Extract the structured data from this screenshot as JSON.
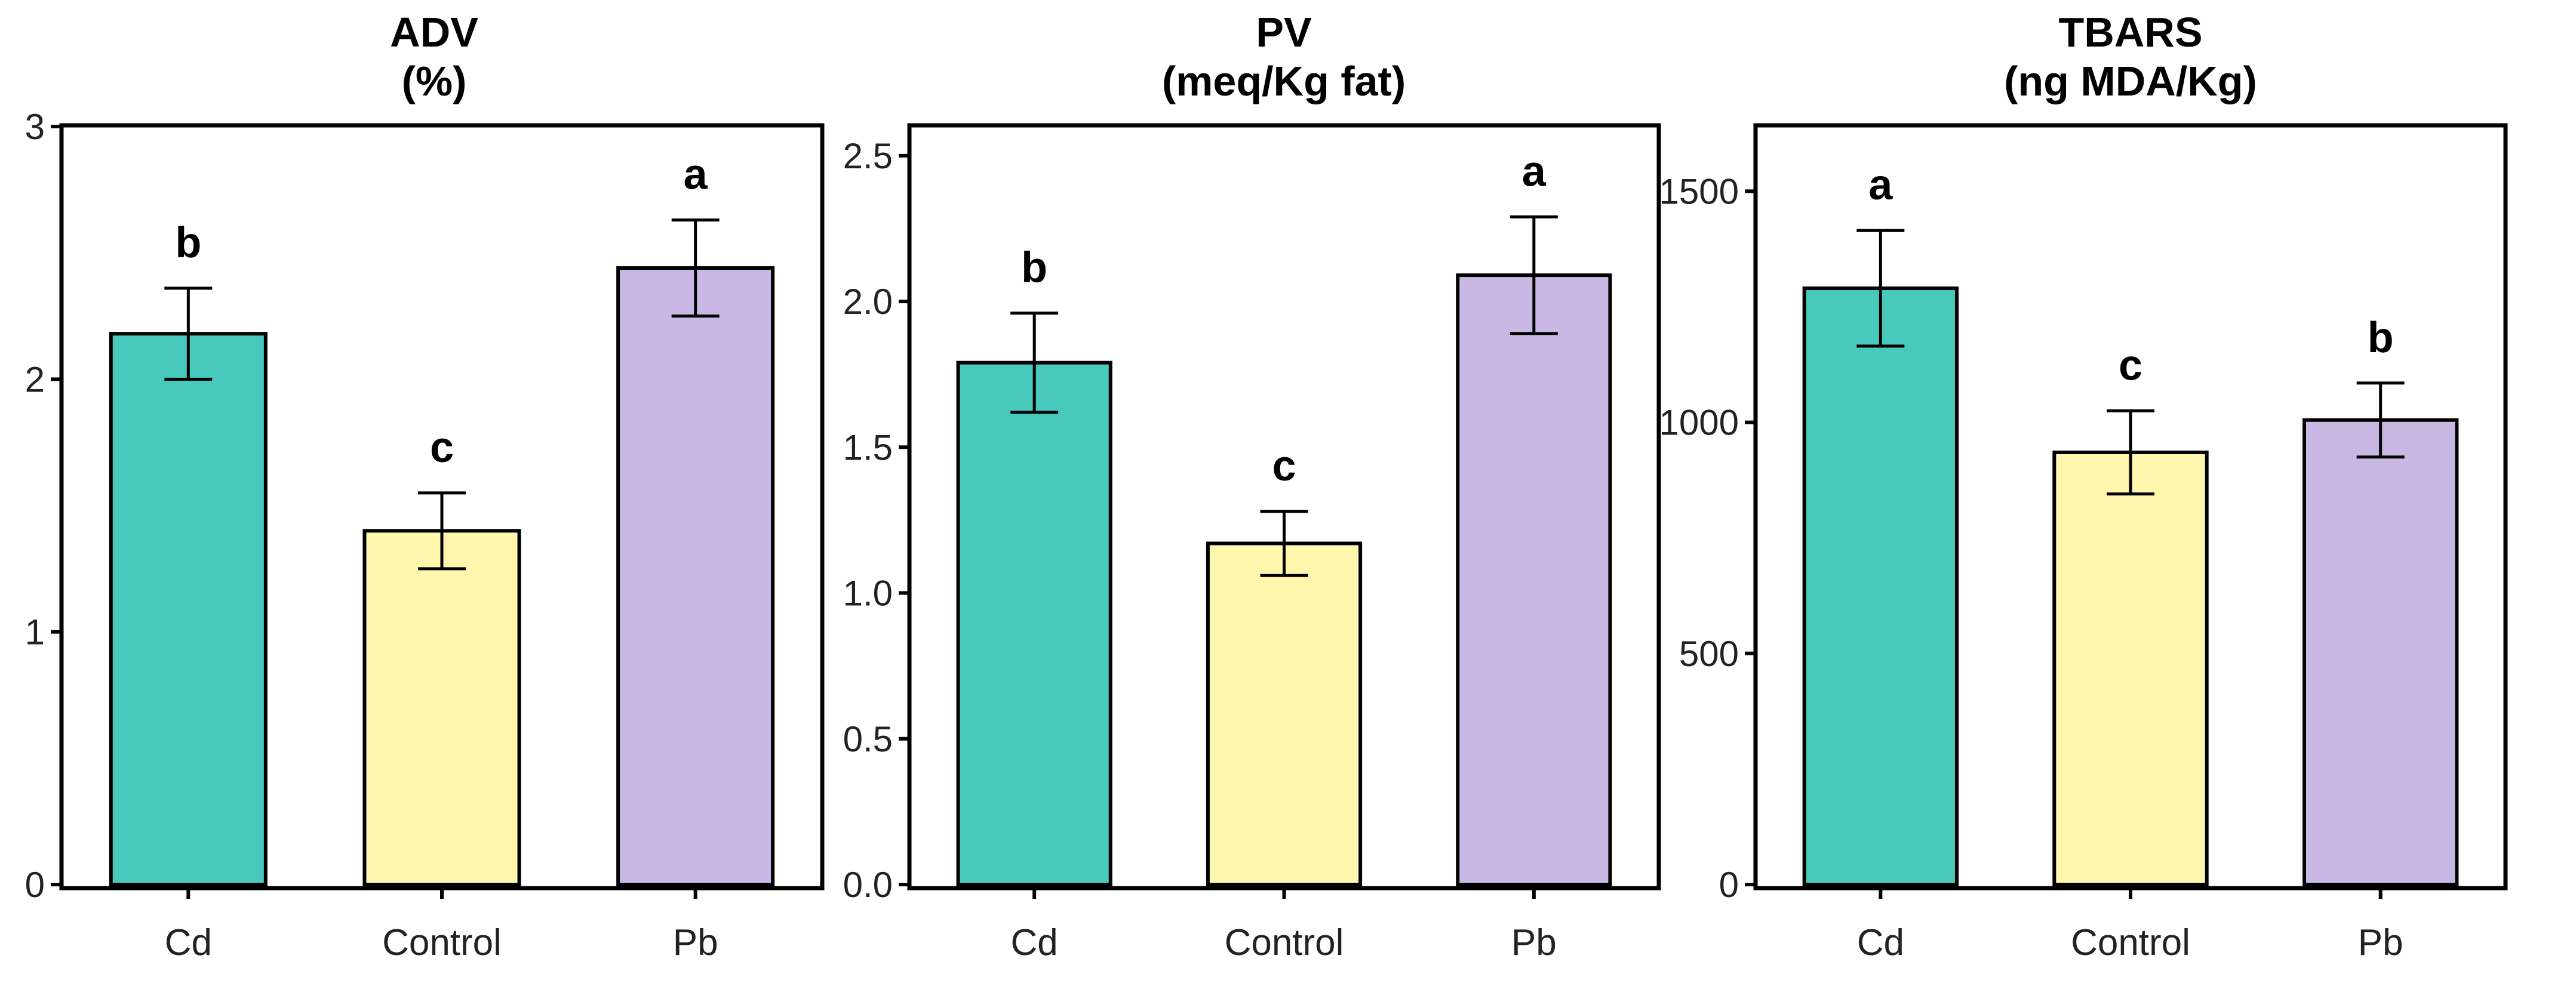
{
  "chart_data": [
    {
      "type": "bar",
      "title_line1": "ADV",
      "title_line2": "(%)",
      "categories": [
        "Cd",
        "Control",
        "Pb"
      ],
      "values": [
        2.18,
        1.4,
        2.44
      ],
      "errors": [
        0.18,
        0.15,
        0.19
      ],
      "significance": [
        "b",
        "c",
        "a"
      ],
      "ylim": [
        0,
        3
      ],
      "yticks": [
        0,
        1,
        2,
        3
      ],
      "ytick_labels": [
        "0",
        "1",
        "2",
        "3"
      ],
      "colors": [
        "#48C9BC",
        "#FFF7AE",
        "#C8B8E3"
      ]
    },
    {
      "type": "bar",
      "title_line1": "PV",
      "title_line2": "(meq/Kg fat)",
      "categories": [
        "Cd",
        "Control",
        "Pb"
      ],
      "values": [
        1.79,
        1.17,
        2.09
      ],
      "errors": [
        0.17,
        0.11,
        0.2
      ],
      "significance": [
        "b",
        "c",
        "a"
      ],
      "ylim": [
        0,
        2.6
      ],
      "yticks": [
        0,
        0.5,
        1.0,
        1.5,
        2.0,
        2.5
      ],
      "ytick_labels": [
        "0.0",
        "0.5",
        "1.0",
        "1.5",
        "2.0",
        "2.5"
      ],
      "colors": [
        "#48C9BC",
        "#FFF7AE",
        "#C8B8E3"
      ]
    },
    {
      "type": "bar",
      "title_line1": "TBARS",
      "title_line2": "(ng MDA/Kg)",
      "categories": [
        "Cd",
        "Control",
        "Pb"
      ],
      "values": [
        1290,
        935,
        1005
      ],
      "errors": [
        125,
        90,
        80
      ],
      "significance": [
        "a",
        "c",
        "b"
      ],
      "ylim": [
        0,
        1640
      ],
      "yticks": [
        0,
        500,
        1000,
        1500
      ],
      "ytick_labels": [
        "0",
        "500",
        "1000",
        "1500"
      ],
      "colors": [
        "#48C9BC",
        "#FFF7AE",
        "#C8B8E3"
      ]
    }
  ]
}
